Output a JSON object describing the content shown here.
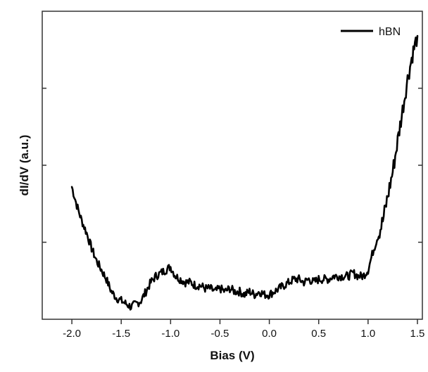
{
  "chart_data": {
    "type": "line",
    "title": "",
    "xlabel": "Bias (V)",
    "ylabel": "dI/dV (a.u.)",
    "xlim": [
      -2.3,
      1.55
    ],
    "ylim": [
      0,
      1
    ],
    "x_ticks": [
      -2.0,
      -1.5,
      -1.0,
      -0.5,
      0.0,
      0.5,
      1.0,
      1.5
    ],
    "x_tick_labels": [
      "-2.0",
      "-1.5",
      "-1.0",
      "-0.5",
      "0.0",
      "0.5",
      "1.0",
      "1.5"
    ],
    "y_ticks": [
      0.25,
      0.5,
      0.75
    ],
    "y_tick_labels_shown": false,
    "grid": false,
    "legend_position": "top-right",
    "colors": {
      "line": "#000000",
      "axis": "#333333"
    },
    "series": [
      {
        "name": "hBN",
        "x": [
          -2.0,
          -1.95,
          -1.9,
          -1.85,
          -1.8,
          -1.75,
          -1.7,
          -1.65,
          -1.6,
          -1.55,
          -1.5,
          -1.45,
          -1.4,
          -1.35,
          -1.3,
          -1.25,
          -1.2,
          -1.15,
          -1.1,
          -1.05,
          -1.0,
          -0.95,
          -0.9,
          -0.85,
          -0.8,
          -0.75,
          -0.7,
          -0.65,
          -0.6,
          -0.55,
          -0.5,
          -0.45,
          -0.4,
          -0.35,
          -0.3,
          -0.25,
          -0.2,
          -0.15,
          -0.1,
          -0.05,
          0.0,
          0.05,
          0.1,
          0.15,
          0.2,
          0.25,
          0.3,
          0.35,
          0.4,
          0.45,
          0.5,
          0.55,
          0.6,
          0.65,
          0.7,
          0.75,
          0.8,
          0.85,
          0.9,
          0.95,
          1.0,
          1.05,
          1.1,
          1.15,
          1.2,
          1.25,
          1.3,
          1.35,
          1.4,
          1.45,
          1.5
        ],
        "y": [
          0.43,
          0.37,
          0.32,
          0.28,
          0.23,
          0.19,
          0.16,
          0.13,
          0.09,
          0.07,
          0.06,
          0.05,
          0.04,
          0.05,
          0.06,
          0.09,
          0.12,
          0.14,
          0.15,
          0.16,
          0.17,
          0.14,
          0.13,
          0.12,
          0.12,
          0.11,
          0.11,
          0.1,
          0.1,
          0.09,
          0.1,
          0.09,
          0.1,
          0.09,
          0.09,
          0.08,
          0.09,
          0.08,
          0.09,
          0.08,
          0.08,
          0.09,
          0.1,
          0.11,
          0.12,
          0.13,
          0.13,
          0.12,
          0.13,
          0.12,
          0.13,
          0.13,
          0.13,
          0.14,
          0.14,
          0.14,
          0.14,
          0.15,
          0.14,
          0.14,
          0.16,
          0.22,
          0.27,
          0.32,
          0.4,
          0.48,
          0.58,
          0.68,
          0.78,
          0.86,
          0.92
        ]
      }
    ]
  }
}
